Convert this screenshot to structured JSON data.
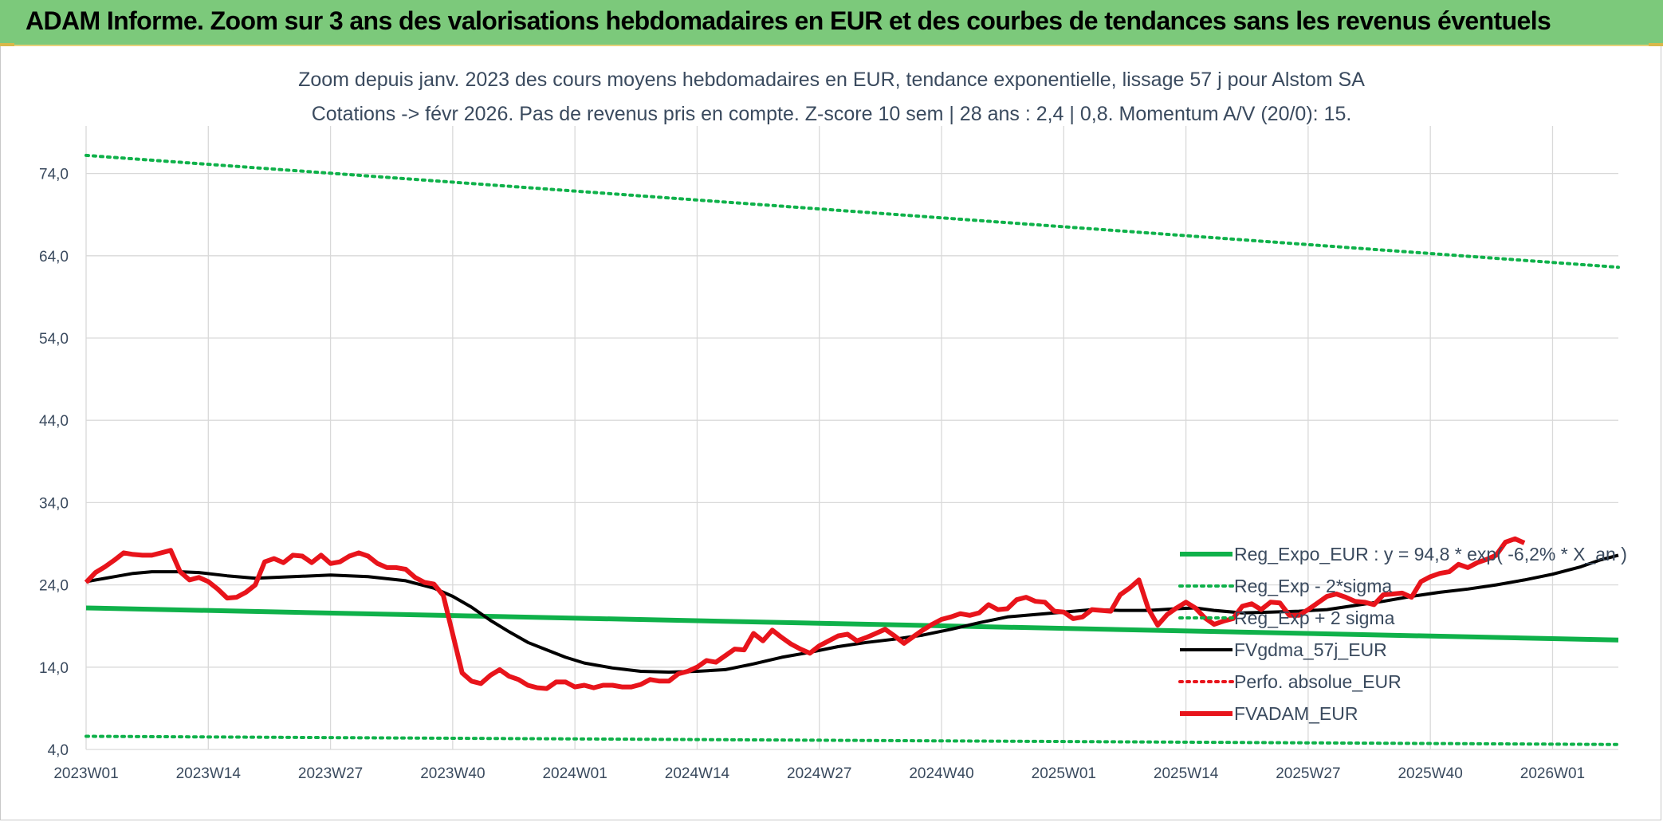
{
  "header": {
    "title": "ADAM Informe. Zoom sur 3 ans des valorisations hebdomadaires en EUR et des courbes de tendances sans les revenus éventuels"
  },
  "colors": {
    "header_bg": "#7cc97b",
    "green_series": "#0fb14a",
    "black_series": "#000000",
    "red_series": "#e8141b",
    "red_dotted": "#e8141b",
    "grid": "#d9d9d9",
    "text": "#3a4a5e"
  },
  "chart_data": {
    "type": "line",
    "title": "Zoom depuis janv. 2023 des cours moyens hebdomadaires en EUR, tendance exponentielle, lissage 57 j pour Alstom SA",
    "subtitle": "Cotations -> févr 2026. Pas de revenus pris en compte. Z-score 10 sem | 28 ans : 2,4 | 0,8. Momentum A/V (20/0): 15.",
    "xlabel": "",
    "ylabel": "",
    "ylim": [
      4.0,
      79.0
    ],
    "yticks": [
      "4,0",
      "14,0",
      "24,0",
      "34,0",
      "44,0",
      "54,0",
      "64,0",
      "74,0"
    ],
    "yticks_values": [
      4,
      14,
      24,
      34,
      44,
      54,
      64,
      74
    ],
    "xlim": [
      0,
      163
    ],
    "xticks": [
      "2023W01",
      "2023W14",
      "2023W27",
      "2023W40",
      "2024W01",
      "2024W14",
      "2024W27",
      "2024W40",
      "2025W01",
      "2025W14",
      "2025W27",
      "2025W40",
      "2026W01"
    ],
    "xticks_index": [
      0,
      13,
      26,
      39,
      52,
      65,
      78,
      91,
      104,
      117,
      130,
      143,
      156
    ],
    "grid": true,
    "legend_position": "bottom-right, inside plot",
    "legend": [
      "Reg_Expo_EUR : y = 94,8 * exp( -6,2% * X_an )",
      "Reg_Exp - 2*sigma",
      "Reg_Exp + 2 sigma",
      "FVgdma_57j_EUR",
      "Perfo. absolue_EUR",
      "FVADAM_EUR"
    ],
    "series": [
      {
        "name": "Reg_Expo_EUR : y = 94,8 * exp( -6,2% * X_an )",
        "style": "solid-thick",
        "color": "#0fb14a",
        "points": [
          [
            0,
            21.2
          ],
          [
            163,
            17.3
          ]
        ]
      },
      {
        "name": "Reg_Exp - 2*sigma",
        "style": "dotted",
        "color": "#0fb14a",
        "points": [
          [
            0,
            5.6
          ],
          [
            163,
            4.6
          ]
        ]
      },
      {
        "name": "Reg_Exp + 2 sigma",
        "style": "dotted",
        "color": "#0fb14a",
        "points": [
          [
            0,
            76.2
          ],
          [
            163,
            62.6
          ]
        ]
      },
      {
        "name": "FVgdma_57j_EUR",
        "style": "solid",
        "color": "#000000",
        "points": [
          [
            0,
            24.4
          ],
          [
            3,
            25.0
          ],
          [
            5,
            25.4
          ],
          [
            7,
            25.6
          ],
          [
            10,
            25.6
          ],
          [
            12,
            25.5
          ],
          [
            15,
            25.1
          ],
          [
            18,
            24.8
          ],
          [
            22,
            25.0
          ],
          [
            26,
            25.2
          ],
          [
            30,
            25.0
          ],
          [
            34,
            24.5
          ],
          [
            37,
            23.6
          ],
          [
            39,
            22.6
          ],
          [
            41,
            21.3
          ],
          [
            43,
            19.7
          ],
          [
            45,
            18.3
          ],
          [
            47,
            17.0
          ],
          [
            49,
            16.1
          ],
          [
            51,
            15.2
          ],
          [
            53,
            14.5
          ],
          [
            56,
            13.9
          ],
          [
            59,
            13.5
          ],
          [
            62,
            13.4
          ],
          [
            65,
            13.5
          ],
          [
            68,
            13.7
          ],
          [
            71,
            14.4
          ],
          [
            74,
            15.2
          ],
          [
            77,
            15.8
          ],
          [
            80,
            16.5
          ],
          [
            83,
            17.0
          ],
          [
            86,
            17.4
          ],
          [
            89,
            17.9
          ],
          [
            92,
            18.6
          ],
          [
            95,
            19.4
          ],
          [
            98,
            20.1
          ],
          [
            101,
            20.4
          ],
          [
            104,
            20.7
          ],
          [
            107,
            21.0
          ],
          [
            110,
            20.9
          ],
          [
            113,
            20.9
          ],
          [
            116,
            21.1
          ],
          [
            118,
            21.2
          ],
          [
            120,
            20.9
          ],
          [
            123,
            20.6
          ],
          [
            126,
            20.7
          ],
          [
            129,
            20.8
          ],
          [
            132,
            21.0
          ],
          [
            135,
            21.5
          ],
          [
            138,
            22.0
          ],
          [
            141,
            22.6
          ],
          [
            144,
            23.1
          ],
          [
            147,
            23.5
          ],
          [
            150,
            24.0
          ],
          [
            153,
            24.6
          ],
          [
            156,
            25.3
          ],
          [
            159,
            26.2
          ],
          [
            161,
            27.0
          ],
          [
            163,
            27.6
          ]
        ]
      },
      {
        "name": "Perfo. absolue_EUR",
        "style": "dotted",
        "color": "#e8141b",
        "points": []
      },
      {
        "name": "FVADAM_EUR",
        "style": "solid-thick",
        "color": "#e8141b",
        "points": [
          [
            0,
            24.3
          ],
          [
            1,
            25.5
          ],
          [
            2,
            26.2
          ],
          [
            3,
            27.0
          ],
          [
            4,
            27.9
          ],
          [
            5,
            27.7
          ],
          [
            6,
            27.6
          ],
          [
            7,
            27.6
          ],
          [
            8,
            27.9
          ],
          [
            9,
            28.2
          ],
          [
            10,
            25.6
          ],
          [
            11,
            24.6
          ],
          [
            12,
            24.9
          ],
          [
            13,
            24.4
          ],
          [
            14,
            23.5
          ],
          [
            15,
            22.4
          ],
          [
            16,
            22.5
          ],
          [
            17,
            23.1
          ],
          [
            18,
            24.0
          ],
          [
            19,
            26.8
          ],
          [
            20,
            27.2
          ],
          [
            21,
            26.7
          ],
          [
            22,
            27.6
          ],
          [
            23,
            27.5
          ],
          [
            24,
            26.7
          ],
          [
            25,
            27.6
          ],
          [
            26,
            26.6
          ],
          [
            27,
            26.8
          ],
          [
            28,
            27.5
          ],
          [
            29,
            27.9
          ],
          [
            30,
            27.5
          ],
          [
            31,
            26.6
          ],
          [
            32,
            26.1
          ],
          [
            33,
            26.1
          ],
          [
            34,
            25.9
          ],
          [
            35,
            24.9
          ],
          [
            36,
            24.3
          ],
          [
            37,
            24.1
          ],
          [
            38,
            22.7
          ],
          [
            39,
            18.0
          ],
          [
            40,
            13.3
          ],
          [
            41,
            12.3
          ],
          [
            42,
            12.0
          ],
          [
            43,
            13.0
          ],
          [
            44,
            13.7
          ],
          [
            45,
            12.9
          ],
          [
            46,
            12.5
          ],
          [
            47,
            11.8
          ],
          [
            48,
            11.5
          ],
          [
            49,
            11.4
          ],
          [
            50,
            12.2
          ],
          [
            51,
            12.2
          ],
          [
            52,
            11.6
          ],
          [
            53,
            11.8
          ],
          [
            54,
            11.5
          ],
          [
            55,
            11.8
          ],
          [
            56,
            11.8
          ],
          [
            57,
            11.6
          ],
          [
            58,
            11.6
          ],
          [
            59,
            11.9
          ],
          [
            60,
            12.5
          ],
          [
            61,
            12.3
          ],
          [
            62,
            12.3
          ],
          [
            63,
            13.2
          ],
          [
            64,
            13.5
          ],
          [
            65,
            14.0
          ],
          [
            66,
            14.8
          ],
          [
            67,
            14.6
          ],
          [
            68,
            15.4
          ],
          [
            69,
            16.2
          ],
          [
            70,
            16.1
          ],
          [
            71,
            18.1
          ],
          [
            72,
            17.2
          ],
          [
            73,
            18.5
          ],
          [
            74,
            17.6
          ],
          [
            75,
            16.8
          ],
          [
            76,
            16.2
          ],
          [
            77,
            15.7
          ],
          [
            78,
            16.6
          ],
          [
            79,
            17.2
          ],
          [
            80,
            17.8
          ],
          [
            81,
            18.0
          ],
          [
            82,
            17.2
          ],
          [
            83,
            17.6
          ],
          [
            84,
            18.1
          ],
          [
            85,
            18.6
          ],
          [
            86,
            17.8
          ],
          [
            87,
            16.9
          ],
          [
            88,
            17.7
          ],
          [
            89,
            18.5
          ],
          [
            90,
            19.2
          ],
          [
            91,
            19.8
          ],
          [
            92,
            20.1
          ],
          [
            93,
            20.5
          ],
          [
            94,
            20.3
          ],
          [
            95,
            20.6
          ],
          [
            96,
            21.6
          ],
          [
            97,
            21.0
          ],
          [
            98,
            21.1
          ],
          [
            99,
            22.2
          ],
          [
            100,
            22.5
          ],
          [
            101,
            22.0
          ],
          [
            102,
            21.9
          ],
          [
            103,
            20.8
          ],
          [
            104,
            20.7
          ],
          [
            105,
            19.9
          ],
          [
            106,
            20.1
          ],
          [
            107,
            21.0
          ],
          [
            108,
            20.9
          ],
          [
            109,
            20.8
          ],
          [
            110,
            22.8
          ],
          [
            111,
            23.6
          ],
          [
            112,
            24.6
          ],
          [
            113,
            21.1
          ],
          [
            114,
            19.1
          ],
          [
            115,
            20.4
          ],
          [
            116,
            21.2
          ],
          [
            117,
            21.9
          ],
          [
            118,
            21.2
          ],
          [
            119,
            20.0
          ],
          [
            120,
            19.2
          ],
          [
            121,
            19.6
          ],
          [
            122,
            19.9
          ],
          [
            123,
            21.4
          ],
          [
            124,
            21.7
          ],
          [
            125,
            21.0
          ],
          [
            126,
            21.9
          ],
          [
            127,
            21.8
          ],
          [
            128,
            20.3
          ],
          [
            129,
            20.3
          ],
          [
            130,
            21.0
          ],
          [
            131,
            21.8
          ],
          [
            132,
            22.6
          ],
          [
            133,
            22.9
          ],
          [
            134,
            22.5
          ],
          [
            135,
            22.0
          ],
          [
            136,
            21.9
          ],
          [
            137,
            21.6
          ],
          [
            138,
            22.8
          ],
          [
            139,
            22.9
          ],
          [
            140,
            23.0
          ],
          [
            141,
            22.5
          ],
          [
            142,
            24.4
          ],
          [
            143,
            25.0
          ],
          [
            144,
            25.4
          ],
          [
            145,
            25.6
          ],
          [
            146,
            26.5
          ],
          [
            147,
            26.1
          ],
          [
            148,
            26.7
          ],
          [
            149,
            27.1
          ],
          [
            150,
            27.6
          ],
          [
            151,
            29.2
          ],
          [
            152,
            29.6
          ],
          [
            153,
            29.1
          ]
        ]
      }
    ]
  }
}
